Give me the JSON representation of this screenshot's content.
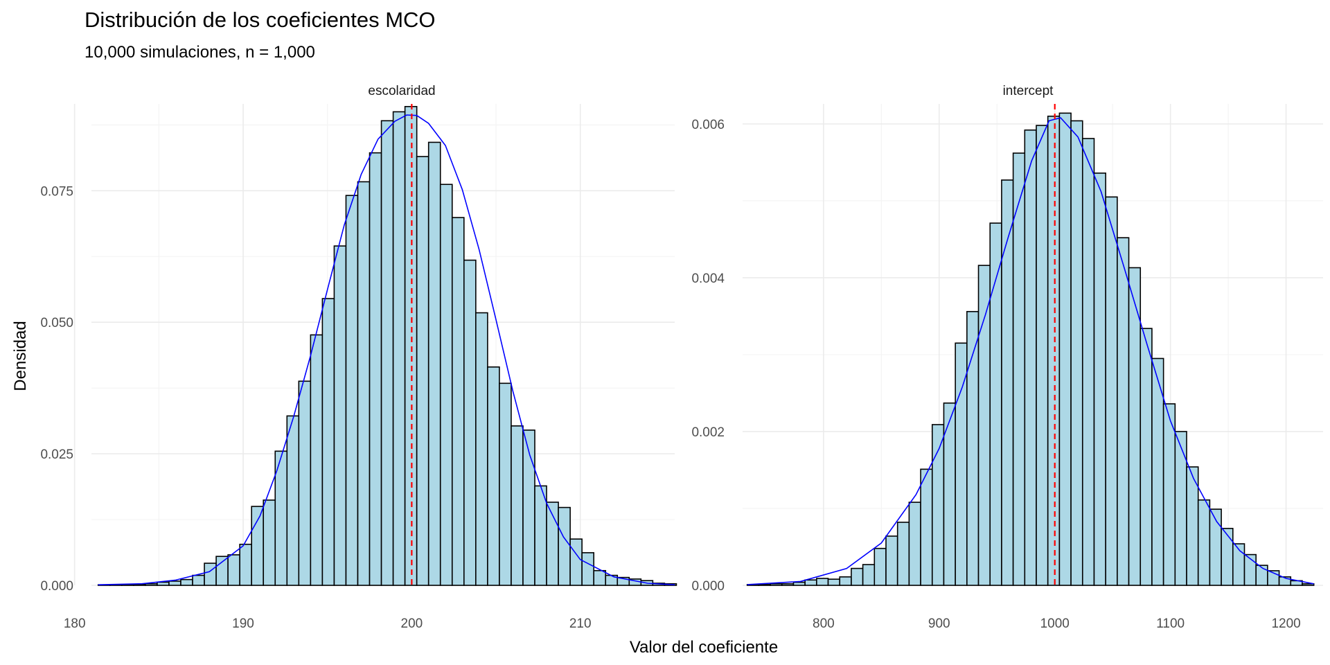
{
  "title": "Distribución de los coeficientes MCO",
  "subtitle": "10,000 simulaciones, n = 1,000",
  "xlabel": "Valor del coeficiente",
  "ylabel": "Densidad",
  "colors": {
    "bar_fill": "#add8e6",
    "bar_stroke": "#000000",
    "density_line": "#0000ff",
    "reference_line": "#ff0000",
    "grid_major": "#ebebeb",
    "grid_minor": "#f4f4f4",
    "tick_text": "#4d4d4d"
  },
  "chart_data": [
    {
      "type": "bar",
      "panel": "escolaridad",
      "title": "escolaridad",
      "xlim": [
        181,
        215.6
      ],
      "ylim": [
        0,
        0.0915
      ],
      "x_ticks": [
        180,
        190,
        200,
        210
      ],
      "x_tick_labels": [
        "180",
        "190",
        "200",
        "210"
      ],
      "y_ticks": [
        0,
        0.025,
        0.05,
        0.075
      ],
      "y_tick_labels": [
        "0.000",
        "0.025",
        "0.050",
        "0.075"
      ],
      "reference_x": 200,
      "bin_width": 0.7,
      "bin_starts": [
        181.4,
        182.1,
        182.8,
        183.5,
        184.2,
        184.9,
        185.6,
        186.3,
        187.0,
        187.7,
        188.4,
        189.1,
        189.8,
        190.5,
        191.2,
        191.9,
        192.6,
        193.3,
        194.0,
        194.7,
        195.4,
        196.1,
        196.8,
        197.5,
        198.2,
        198.9,
        199.6,
        200.3,
        201.0,
        201.7,
        202.4,
        203.1,
        203.8,
        204.5,
        205.2,
        205.9,
        206.6,
        207.3,
        208.0,
        208.7,
        209.4,
        210.1,
        210.8,
        211.5,
        212.2,
        212.9,
        213.6,
        214.3,
        215.0
      ],
      "values": [
        0.0001,
        0.0001,
        0.0001,
        0.0002,
        0.0003,
        0.0006,
        0.0008,
        0.0011,
        0.0019,
        0.0042,
        0.0055,
        0.0058,
        0.0078,
        0.015,
        0.0162,
        0.0255,
        0.0322,
        0.0388,
        0.0476,
        0.0545,
        0.0645,
        0.0741,
        0.0767,
        0.0822,
        0.0883,
        0.09,
        0.091,
        0.0815,
        0.0842,
        0.0762,
        0.0699,
        0.0618,
        0.0518,
        0.0415,
        0.0384,
        0.0303,
        0.0295,
        0.0189,
        0.0158,
        0.0148,
        0.0088,
        0.0062,
        0.0028,
        0.0019,
        0.0015,
        0.0012,
        0.0009,
        0.0004,
        0.0003
      ],
      "density_x": [
        181.4,
        184,
        186,
        188,
        190,
        191,
        192,
        193,
        194,
        195,
        196,
        197,
        198,
        199,
        199.7,
        200.3,
        201,
        202,
        203,
        204,
        205,
        206,
        207,
        208,
        209,
        210,
        212,
        214,
        215.6
      ],
      "density_y": [
        0.0001,
        0.0003,
        0.001,
        0.0026,
        0.0075,
        0.0132,
        0.0218,
        0.0321,
        0.0437,
        0.0562,
        0.0685,
        0.0781,
        0.0848,
        0.0882,
        0.0894,
        0.0893,
        0.0878,
        0.0836,
        0.0752,
        0.0638,
        0.0505,
        0.0369,
        0.0248,
        0.0156,
        0.0092,
        0.0049,
        0.0016,
        0.0004,
        0.0001
      ]
    },
    {
      "type": "bar",
      "panel": "intercept",
      "title": "intercept",
      "xlim": [
        730,
        1232
      ],
      "ylim": [
        0,
        0.00626
      ],
      "x_ticks": [
        800,
        900,
        1000,
        1100,
        1200
      ],
      "x_tick_labels": [
        "800",
        "900",
        "1000",
        "1100",
        "1200"
      ],
      "y_ticks": [
        0,
        0.002,
        0.004,
        0.006
      ],
      "y_tick_labels": [
        "0.000",
        "0.002",
        "0.004",
        "0.006"
      ],
      "reference_x": 1000,
      "bin_width": 10,
      "bin_starts": [
        734,
        744,
        754,
        764,
        774,
        784,
        794,
        804,
        814,
        824,
        834,
        844,
        854,
        864,
        874,
        884,
        894,
        904,
        914,
        924,
        934,
        944,
        954,
        964,
        974,
        984,
        994,
        1004,
        1014,
        1024,
        1034,
        1044,
        1054,
        1064,
        1074,
        1084,
        1094,
        1104,
        1114,
        1124,
        1134,
        1144,
        1154,
        1164,
        1174,
        1184,
        1194,
        1204,
        1214
      ],
      "values": [
        1e-05,
        1e-05,
        2e-05,
        2e-05,
        4e-05,
        7e-05,
        9e-05,
        8e-05,
        0.00011,
        0.00022,
        0.00027,
        0.00048,
        0.00064,
        0.00082,
        0.00108,
        0.00151,
        0.00209,
        0.00237,
        0.00315,
        0.00356,
        0.00416,
        0.00471,
        0.00527,
        0.00562,
        0.00592,
        0.00598,
        0.0061,
        0.00614,
        0.00604,
        0.00581,
        0.00536,
        0.00505,
        0.00452,
        0.00413,
        0.00334,
        0.00295,
        0.00236,
        0.002,
        0.00154,
        0.00111,
        0.00099,
        0.00074,
        0.00054,
        0.0004,
        0.00026,
        0.00019,
        0.00011,
        6e-05,
        2e-05
      ],
      "density_x": [
        734,
        780,
        820,
        850,
        880,
        900,
        920,
        940,
        960,
        980,
        995,
        1005,
        1020,
        1040,
        1060,
        1080,
        1100,
        1120,
        1140,
        1160,
        1180,
        1200,
        1224
      ],
      "density_y": [
        1e-05,
        5e-05,
        0.00022,
        0.00055,
        0.00118,
        0.00178,
        0.00258,
        0.00352,
        0.00454,
        0.00552,
        0.00604,
        0.00608,
        0.00583,
        0.00512,
        0.00413,
        0.00312,
        0.00214,
        0.00139,
        0.00083,
        0.00045,
        0.00022,
        9e-05,
        2e-05
      ]
    }
  ]
}
